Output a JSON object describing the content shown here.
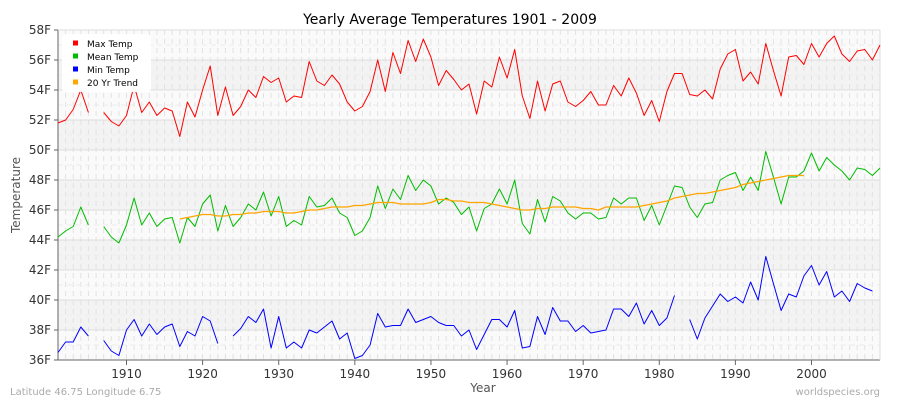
{
  "chart_data": {
    "type": "line",
    "title": "Yearly Average Temperatures 1901 - 2009",
    "xlabel": "Year",
    "ylabel": "Temperature",
    "xlim": [
      1901,
      2009
    ],
    "ylim": [
      36,
      58
    ],
    "x_ticks": [
      1910,
      1920,
      1930,
      1940,
      1950,
      1960,
      1970,
      1980,
      1990,
      2000
    ],
    "y_ticks": [
      "36F",
      "38F",
      "40F",
      "42F",
      "44F",
      "46F",
      "48F",
      "50F",
      "52F",
      "54F",
      "56F",
      "58F"
    ],
    "grid": true,
    "legend_position": "top-left",
    "series": [
      {
        "name": "Max Temp",
        "color": "#ff0000",
        "start_year": 1901,
        "values": [
          51.8,
          52.0,
          52.7,
          54.0,
          52.5,
          null,
          52.5,
          51.9,
          51.6,
          52.3,
          54.3,
          52.5,
          53.2,
          52.3,
          52.8,
          52.6,
          50.9,
          53.2,
          52.2,
          54.0,
          55.6,
          52.3,
          54.2,
          52.3,
          52.9,
          54.0,
          53.5,
          54.9,
          54.5,
          54.8,
          53.2,
          53.6,
          53.5,
          55.9,
          54.6,
          54.3,
          55.0,
          54.4,
          53.2,
          52.6,
          52.9,
          53.9,
          56.0,
          53.9,
          56.5,
          55.1,
          57.3,
          55.9,
          57.4,
          56.2,
          54.3,
          55.3,
          54.7,
          54.0,
          54.4,
          52.4,
          54.6,
          54.2,
          56.2,
          54.8,
          56.7,
          53.6,
          52.1,
          54.6,
          52.6,
          54.4,
          54.6,
          53.2,
          52.9,
          53.3,
          53.9,
          53.0,
          53.0,
          54.3,
          53.6,
          54.8,
          53.8,
          52.3,
          53.3,
          51.9,
          53.9,
          55.1,
          55.1,
          53.7,
          53.6,
          54.0,
          53.4,
          55.4,
          56.4,
          56.7,
          54.6,
          55.2,
          54.4,
          57.1,
          55.3,
          53.6,
          56.2,
          56.3,
          55.7,
          57.1,
          56.2,
          57.1,
          57.6,
          56.4,
          55.9,
          56.6,
          56.7,
          56.0,
          57.0
        ]
      },
      {
        "name": "Mean Temp",
        "color": "#00bb00",
        "start_year": 1901,
        "values": [
          44.2,
          44.6,
          44.9,
          46.2,
          45.0,
          null,
          44.9,
          44.2,
          43.8,
          45.0,
          46.8,
          45.0,
          45.8,
          44.9,
          45.4,
          45.5,
          43.8,
          45.5,
          44.9,
          46.4,
          47.0,
          44.6,
          46.3,
          44.9,
          45.5,
          46.4,
          46.0,
          47.2,
          45.6,
          46.9,
          44.9,
          45.3,
          45.0,
          46.9,
          46.2,
          46.3,
          46.8,
          45.8,
          45.5,
          44.3,
          44.6,
          45.5,
          47.6,
          46.1,
          47.4,
          46.7,
          48.3,
          47.3,
          48.0,
          47.6,
          46.4,
          46.8,
          46.5,
          45.7,
          46.2,
          44.6,
          46.1,
          46.4,
          47.4,
          46.4,
          48.0,
          45.1,
          44.4,
          46.7,
          45.2,
          46.9,
          46.6,
          45.8,
          45.4,
          45.8,
          45.8,
          45.4,
          45.5,
          46.8,
          46.4,
          46.8,
          46.8,
          45.3,
          46.3,
          45.0,
          46.3,
          47.6,
          47.5,
          46.2,
          45.5,
          46.4,
          46.5,
          48.0,
          48.3,
          48.5,
          47.3,
          48.2,
          47.3,
          49.9,
          48.2,
          46.4,
          48.2,
          48.2,
          48.6,
          49.8,
          48.6,
          49.5,
          49.0,
          48.6,
          48.0,
          48.8,
          48.7,
          48.3,
          48.8
        ]
      },
      {
        "name": "Min Temp",
        "color": "#0000ff",
        "start_year": 1901,
        "values": [
          36.5,
          37.2,
          37.2,
          38.2,
          37.6,
          null,
          37.3,
          36.6,
          36.3,
          38.0,
          38.7,
          37.6,
          38.4,
          37.7,
          38.2,
          38.4,
          36.9,
          37.9,
          37.6,
          38.9,
          38.6,
          37.1,
          null,
          37.6,
          38.1,
          38.9,
          38.5,
          39.4,
          36.8,
          38.9,
          36.8,
          37.2,
          36.8,
          38.0,
          37.8,
          38.2,
          38.6,
          37.4,
          37.8,
          36.1,
          36.3,
          37.0,
          39.1,
          38.2,
          38.3,
          38.3,
          39.4,
          38.5,
          38.7,
          38.9,
          38.5,
          38.3,
          38.3,
          37.6,
          38.0,
          36.7,
          37.7,
          38.7,
          38.7,
          38.2,
          39.3,
          36.8,
          36.9,
          38.9,
          37.7,
          39.5,
          38.6,
          38.6,
          37.9,
          38.3,
          37.8,
          37.9,
          38.0,
          39.4,
          39.4,
          38.9,
          39.8,
          38.4,
          39.3,
          38.3,
          38.8,
          40.3,
          null,
          38.7,
          37.4,
          38.8,
          39.6,
          40.4,
          39.9,
          40.2,
          39.8,
          41.2,
          40.0,
          42.9,
          41.1,
          39.3,
          40.4,
          40.2,
          41.6,
          42.3,
          41.0,
          41.9,
          40.2,
          40.6,
          39.9,
          41.1,
          40.8,
          40.6,
          null
        ]
      },
      {
        "name": "20 Yr Trend",
        "color": "#ffa500",
        "start_year": 1917,
        "values": [
          45.4,
          45.5,
          45.6,
          45.7,
          45.7,
          45.6,
          45.6,
          45.7,
          45.7,
          45.8,
          45.8,
          45.9,
          45.9,
          45.9,
          45.8,
          45.8,
          45.9,
          46.0,
          46.0,
          46.1,
          46.2,
          46.2,
          46.2,
          46.3,
          46.3,
          46.4,
          46.5,
          46.5,
          46.5,
          46.4,
          46.4,
          46.4,
          46.4,
          46.5,
          46.7,
          46.7,
          46.6,
          46.6,
          46.5,
          46.5,
          46.5,
          46.4,
          46.3,
          46.2,
          46.1,
          46.0,
          46.0,
          46.1,
          46.1,
          46.2,
          46.2,
          46.2,
          46.2,
          46.1,
          46.1,
          46.0,
          46.2,
          46.2,
          46.2,
          46.2,
          46.2,
          46.3,
          46.4,
          46.5,
          46.6,
          46.8,
          46.9,
          47.0,
          47.1,
          47.1,
          47.2,
          47.3,
          47.4,
          47.5,
          47.7,
          47.8,
          47.9,
          48.0,
          48.1,
          48.2,
          48.3,
          48.3,
          48.3
        ]
      }
    ]
  },
  "footer": {
    "location": "Latitude 46.75 Longitude 6.75",
    "source": "worldspecies.org"
  }
}
